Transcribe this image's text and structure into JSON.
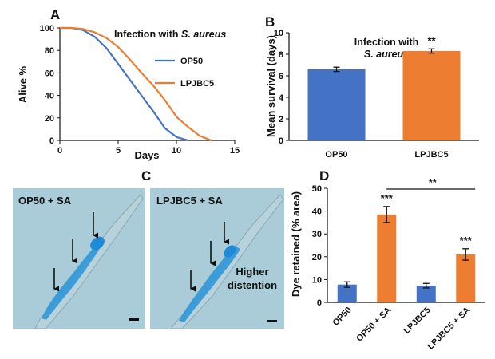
{
  "colors": {
    "op50": "#4472C4",
    "lpjbc5": "#ED7D31",
    "axis": "#111111",
    "micrograph_bg": "#a9ccd8",
    "dye": "#2f97d8"
  },
  "chart_data": [
    {
      "panel": "A",
      "type": "line",
      "annotation": {
        "prefix": "Infection with ",
        "species": "S. aureus"
      },
      "xlabel": "Days",
      "ylabel": "Alive %",
      "xlim": [
        0,
        15
      ],
      "ylim": [
        0,
        100
      ],
      "xticks": [
        0,
        5,
        10,
        15
      ],
      "yticks": [
        0,
        20,
        40,
        60,
        80,
        100
      ],
      "grid": false,
      "legend_position": "right",
      "series": [
        {
          "name": "OP50",
          "color": "#4472C4",
          "x": [
            0,
            1,
            2,
            3,
            4,
            5,
            6,
            7,
            8,
            9,
            10,
            11
          ],
          "y": [
            100,
            100,
            98,
            92,
            82,
            68,
            54,
            40,
            26,
            11,
            3,
            0
          ]
        },
        {
          "name": "LPJBC5",
          "color": "#ED7D31",
          "x": [
            0,
            1,
            2,
            3,
            4,
            5,
            6,
            7,
            8,
            9,
            10,
            11,
            12,
            13
          ],
          "y": [
            100,
            100,
            99,
            96,
            91,
            83,
            72,
            60,
            49,
            36,
            21,
            12,
            4,
            0
          ]
        }
      ]
    },
    {
      "panel": "B",
      "type": "bar",
      "annotation": {
        "line1": "Infection with",
        "line2": "S. aureus"
      },
      "categories": [
        "OP50",
        "LPJBC5"
      ],
      "values": [
        6.6,
        8.3
      ],
      "errors": [
        0.2,
        0.2
      ],
      "colors": [
        "#4472C4",
        "#ED7D31"
      ],
      "significance": [
        "",
        "**"
      ],
      "xlabel": "",
      "ylabel": "Mean survival (days)",
      "ylim": [
        0,
        10
      ],
      "yticks": [
        0,
        2,
        4,
        6,
        8,
        10
      ],
      "grid": false
    },
    {
      "panel": "D",
      "type": "bar",
      "categories": [
        "OP50",
        "OP50 + SA",
        "LPJBC5",
        "LPJBC5 + SA"
      ],
      "values": [
        7.8,
        38.5,
        7.3,
        21.0
      ],
      "errors": [
        1.2,
        3.5,
        1.0,
        2.5
      ],
      "colors": [
        "#4472C4",
        "#ED7D31",
        "#4472C4",
        "#ED7D31"
      ],
      "significance": [
        "",
        "***",
        "",
        "***"
      ],
      "bracket": {
        "label": "**",
        "from": 1,
        "to": 3
      },
      "xlabel": "",
      "ylabel": "Dye retained (% area)",
      "ylim": [
        0,
        50
      ],
      "yticks": [
        0,
        10,
        20,
        30,
        40,
        50
      ],
      "grid": false
    }
  ],
  "panel_c": {
    "letter": "C",
    "images": [
      {
        "label": "OP50 + SA",
        "note_line1": "",
        "note_line2": ""
      },
      {
        "label": "LPJBC5 + SA",
        "note_line1": "Higher",
        "note_line2": "distention"
      }
    ]
  }
}
